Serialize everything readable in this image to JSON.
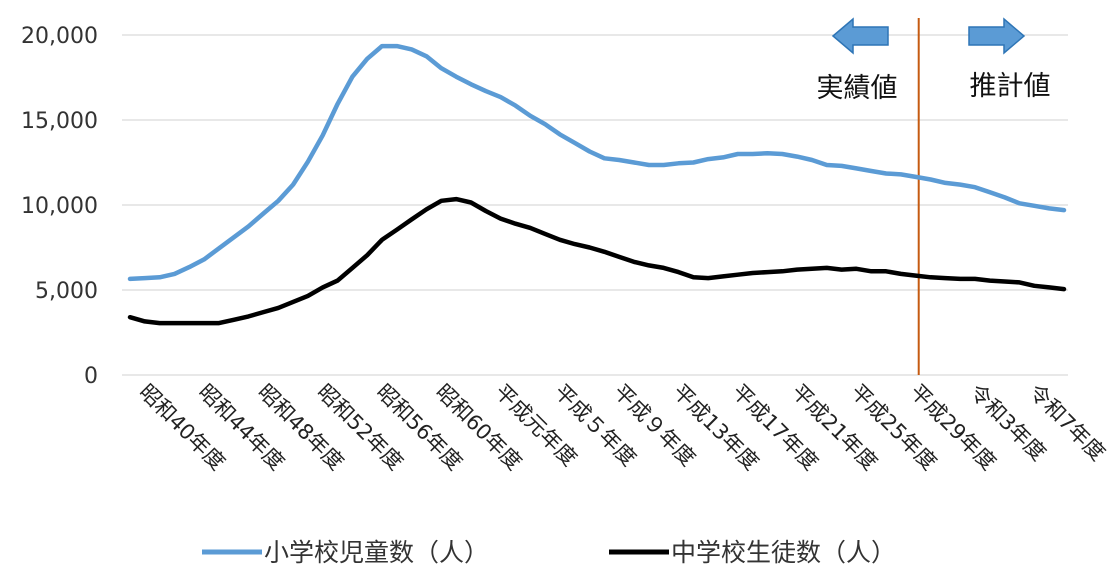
{
  "chart_data": {
    "type": "line",
    "title": "",
    "xlabel": "",
    "ylabel": "",
    "ylim": [
      0,
      20000
    ],
    "yticks": [
      0,
      5000,
      10000,
      15000,
      20000
    ],
    "ytick_labels": [
      "0",
      "5,000",
      "10,000",
      "15,000",
      "20,000"
    ],
    "grid": "horizontal",
    "legend": "bottom",
    "x_labels": [
      {
        "index": 0,
        "label": "昭和40年度"
      },
      {
        "index": 4,
        "label": "昭和44年度"
      },
      {
        "index": 8,
        "label": "昭和48年度"
      },
      {
        "index": 12,
        "label": "昭和52年度"
      },
      {
        "index": 16,
        "label": "昭和56年度"
      },
      {
        "index": 20,
        "label": "昭和60年度"
      },
      {
        "index": 24,
        "label": "平成元年度"
      },
      {
        "index": 28,
        "label": "平成５年度"
      },
      {
        "index": 32,
        "label": "平成９年度"
      },
      {
        "index": 36,
        "label": "平成13年度"
      },
      {
        "index": 40,
        "label": "平成17年度"
      },
      {
        "index": 44,
        "label": "平成21年度"
      },
      {
        "index": 48,
        "label": "平成25年度"
      },
      {
        "index": 52,
        "label": "平成29年度"
      },
      {
        "index": 56,
        "label": "令和3年度"
      },
      {
        "index": 60,
        "label": "令和7年度"
      }
    ],
    "series": [
      {
        "name": "小学校児童数（人）",
        "color": "#5b9bd5",
        "values": [
          5650,
          5700,
          5750,
          5950,
          6350,
          6800,
          7450,
          8100,
          8750,
          9500,
          10250,
          11200,
          12550,
          14100,
          15950,
          17550,
          18600,
          19350,
          19350,
          19150,
          18750,
          18050,
          17550,
          17100,
          16700,
          16350,
          15850,
          15250,
          14750,
          14150,
          13650,
          13150,
          12750,
          12650,
          12500,
          12350,
          12350,
          12450,
          12500,
          12700,
          12800,
          13000,
          13000,
          13050,
          13000,
          12850,
          12650,
          12350,
          12300,
          12150,
          12000,
          11850,
          11800,
          11650,
          11500,
          11300,
          11200,
          11050,
          10750,
          10450,
          10100,
          9950,
          9800,
          9700
        ]
      },
      {
        "name": "中学校生徒数（人）",
        "color": "#000000",
        "values": [
          3400,
          3150,
          3050,
          3050,
          3050,
          3050,
          3050,
          3250,
          3450,
          3700,
          3950,
          4300,
          4650,
          5150,
          5550,
          6300,
          7050,
          7950,
          8550,
          9150,
          9750,
          10250,
          10350,
          10150,
          9650,
          9200,
          8900,
          8650,
          8300,
          7950,
          7700,
          7500,
          7250,
          6950,
          6650,
          6450,
          6300,
          6050,
          5750,
          5700,
          5800,
          5900,
          6000,
          6050,
          6100,
          6200,
          6250,
          6300,
          6200,
          6250,
          6100,
          6100,
          5950,
          5850,
          5750,
          5700,
          5650,
          5650,
          5550,
          5500,
          5450,
          5250,
          5150,
          5050
        ]
      }
    ],
    "split_index": 53.2,
    "annotations": {
      "actual_label": "実績値",
      "forecast_label": "推計値"
    },
    "colors": {
      "split_line": "#c55a11",
      "arrow_fill": "#5b9bd5",
      "arrow_stroke": "#2e75b6",
      "grid": "#d9d9d9"
    }
  }
}
